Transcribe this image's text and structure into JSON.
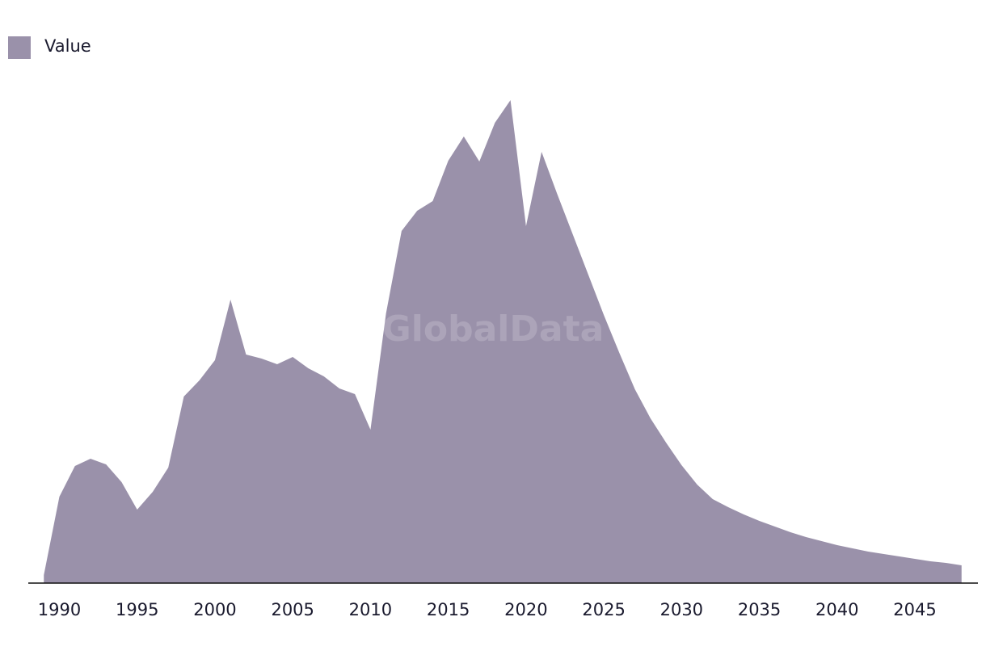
{
  "chart_data": {
    "type": "area",
    "watermark": "GlobalData",
    "x": [
      1989,
      1990,
      1991,
      1992,
      1993,
      1994,
      1995,
      1996,
      1997,
      1998,
      1999,
      2000,
      2001,
      2002,
      2003,
      2004,
      2005,
      2006,
      2007,
      2008,
      2009,
      2010,
      2011,
      2012,
      2013,
      2014,
      2015,
      2016,
      2017,
      2018,
      2019,
      2020,
      2021,
      2022,
      2023,
      2024,
      2025,
      2026,
      2027,
      2028,
      2029,
      2030,
      2031,
      2032,
      2033,
      2034,
      2035,
      2036,
      2037,
      2038,
      2039,
      2040,
      2041,
      2042,
      2043,
      2044,
      2045,
      2046,
      2047,
      2048
    ],
    "series": [
      {
        "name": "Value",
        "color": "#9a91aa",
        "values": [
          10,
          107,
          145,
          154,
          147,
          125,
          91,
          113,
          143,
          231,
          251,
          276,
          351,
          283,
          278,
          271,
          280,
          266,
          256,
          241,
          234,
          190,
          334,
          436,
          461,
          473,
          523,
          553,
          522,
          570,
          598,
          442,
          534,
          482,
          432,
          382,
          332,
          285,
          240,
          204,
          174,
          146,
          122,
          104,
          94,
          85,
          77,
          70,
          63,
          57,
          52,
          47,
          43,
          39,
          36,
          33,
          30,
          27,
          25,
          22
        ]
      }
    ],
    "xlim": [
      1988,
      2049
    ],
    "xticks": [
      1990,
      1995,
      2000,
      2005,
      2010,
      2015,
      2020,
      2025,
      2030,
      2035,
      2040,
      2045
    ],
    "ylim": [
      0,
      620
    ],
    "legend": "top-left"
  }
}
